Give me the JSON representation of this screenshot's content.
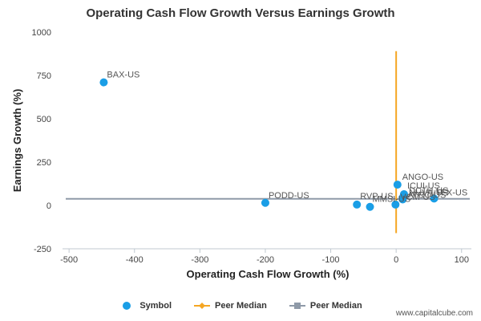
{
  "chart_data": {
    "type": "scatter",
    "title": "Operating Cash Flow Growth Versus Earnings Growth",
    "xlabel": "Operating Cash Flow Growth (%)",
    "ylabel": "Earnings Growth (%)",
    "xlim": [
      -510,
      115
    ],
    "ylim": [
      -250,
      1000
    ],
    "xticks": [
      -500,
      -400,
      -300,
      -200,
      -100,
      0,
      100
    ],
    "yticks": [
      -250,
      0,
      250,
      500,
      750,
      1000
    ],
    "grid": false,
    "legend_position": "bottom",
    "colors": {
      "symbol": "#1a9ee6",
      "peer_median_x": "#f5a623",
      "peer_median_y": "#8f9aa8",
      "axis": "#c0c8d0"
    },
    "series": [
      {
        "name": "Symbol",
        "points": [
          {
            "label": "BAX-US",
            "x": -447,
            "y": 710
          },
          {
            "label": "PODD-US",
            "x": -200,
            "y": 15
          },
          {
            "label": "RVP-US",
            "x": -60,
            "y": 5
          },
          {
            "label": "MMSI-US",
            "x": -40,
            "y": -8
          },
          {
            "label": "ANGO-US",
            "x": 2,
            "y": 120
          },
          {
            "label": "ICUI-US",
            "x": 12,
            "y": 65
          },
          {
            "label": "DCTH-US",
            "x": 12,
            "y": 55
          },
          {
            "label": "NUVA-US",
            "x": 10,
            "y": 45
          },
          {
            "label": "ATRC-US",
            "x": 10,
            "y": 35
          },
          {
            "label": "VCM-US",
            "x": -1,
            "y": 5
          },
          {
            "label": "TFX-US",
            "x": 58,
            "y": 40
          }
        ]
      },
      {
        "name": "Peer Median",
        "type": "vertical-line",
        "x": 0,
        "y_range": [
          -160,
          890
        ]
      },
      {
        "name": "Peer Median",
        "type": "horizontal-line",
        "y": 38
      }
    ]
  },
  "legend": {
    "items": [
      {
        "label": "Symbol"
      },
      {
        "label": "Peer Median"
      },
      {
        "label": "Peer Median"
      }
    ]
  },
  "watermark": "www.capitalcube.com"
}
